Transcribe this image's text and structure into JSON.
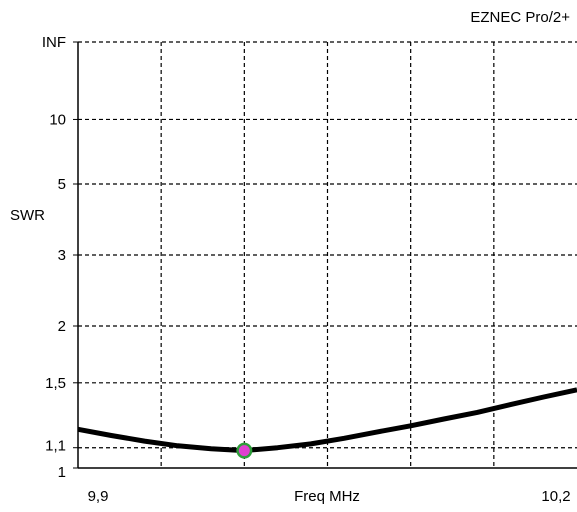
{
  "header": {
    "program_label": "EZNEC Pro/2+"
  },
  "chart_data": {
    "type": "line",
    "title": "",
    "xlabel": "Freq MHz",
    "ylabel": "SWR",
    "xlim": [
      9.9,
      10.2
    ],
    "ylim": [
      1,
      "INF"
    ],
    "y_scale": "reflection-coefficient (SWR) scale",
    "grid": true,
    "grid_style": "dashed",
    "x_tick_labels": [
      "9,9",
      "Freq MHz",
      "10,2"
    ],
    "y_ticks": [
      {
        "value": "INF",
        "label": "INF"
      },
      {
        "value": 10,
        "label": "10"
      },
      {
        "value": 5,
        "label": "5"
      },
      {
        "value": 3,
        "label": "3"
      },
      {
        "value": 2,
        "label": "2"
      },
      {
        "value": 1.5,
        "label": "1,5"
      },
      {
        "value": 1.1,
        "label": "1,1"
      },
      {
        "value": 1,
        "label": "1"
      }
    ],
    "x_grid_values": [
      9.95,
      10.0,
      10.05,
      10.1,
      10.15
    ],
    "series": [
      {
        "color": "#000000",
        "points": [
          {
            "x": 9.9,
            "y": 1.2
          },
          {
            "x": 9.92,
            "y": 1.165
          },
          {
            "x": 9.94,
            "y": 1.135
          },
          {
            "x": 9.96,
            "y": 1.11
          },
          {
            "x": 9.98,
            "y": 1.095
          },
          {
            "x": 10.0,
            "y": 1.085
          },
          {
            "x": 10.02,
            "y": 1.1
          },
          {
            "x": 10.04,
            "y": 1.12
          },
          {
            "x": 10.06,
            "y": 1.15
          },
          {
            "x": 10.08,
            "y": 1.185
          },
          {
            "x": 10.1,
            "y": 1.22
          },
          {
            "x": 10.12,
            "y": 1.26
          },
          {
            "x": 10.14,
            "y": 1.3
          },
          {
            "x": 10.16,
            "y": 1.35
          },
          {
            "x": 10.18,
            "y": 1.4
          },
          {
            "x": 10.2,
            "y": 1.45
          }
        ]
      }
    ],
    "marker": {
      "x": 10.0,
      "y": 1.085,
      "fill_color": "#e040d0",
      "ring_color": "#2e9e3a"
    }
  }
}
